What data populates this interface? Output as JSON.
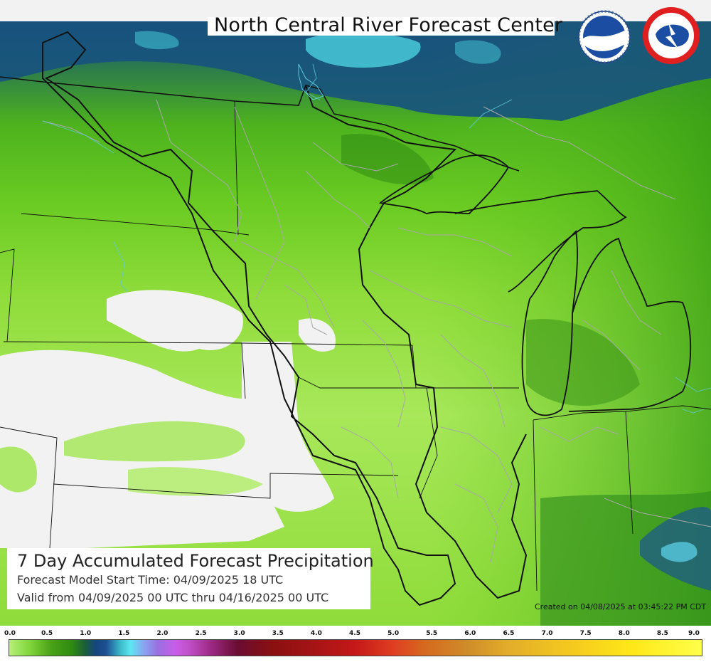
{
  "header": {
    "title": "North Central River Forecast Center"
  },
  "logos": [
    {
      "name": "noaa",
      "icon": "noaa-seal-icon",
      "color": "#1b4ea3"
    },
    {
      "name": "nws",
      "icon": "nws-logo-icon",
      "color": "#e02020"
    }
  ],
  "info": {
    "title": "7 Day Accumulated Forecast Precipitation",
    "model_start": "Forecast Model Start Time:  04/09/2025 18 UTC",
    "valid": "Valid from 04/09/2025 00 UTC thru 04/16/2025 00 UTC"
  },
  "created": "Created on 04/08/2025 at 03:45:22 PM CDT",
  "scale": {
    "min": 0.0,
    "max": 9.0,
    "labels": [
      "0.0",
      "0.5",
      "1.0",
      "1.5",
      "2.0",
      "2.5",
      "3.0",
      "3.5",
      "4.0",
      "4.5",
      "5.0",
      "5.5",
      "6.0",
      "6.5",
      "7.0",
      "7.5",
      "8.0",
      "8.5",
      "9.0"
    ]
  },
  "colors": {
    "background": "#f2f2f2",
    "light_green": "#9be040",
    "mid_green": "#5cb81f",
    "dark_green": "#2f8a12",
    "deep_blue": "#1a4f7e",
    "cyan": "#52d8e6",
    "no_precip": "#f2f2f2"
  }
}
